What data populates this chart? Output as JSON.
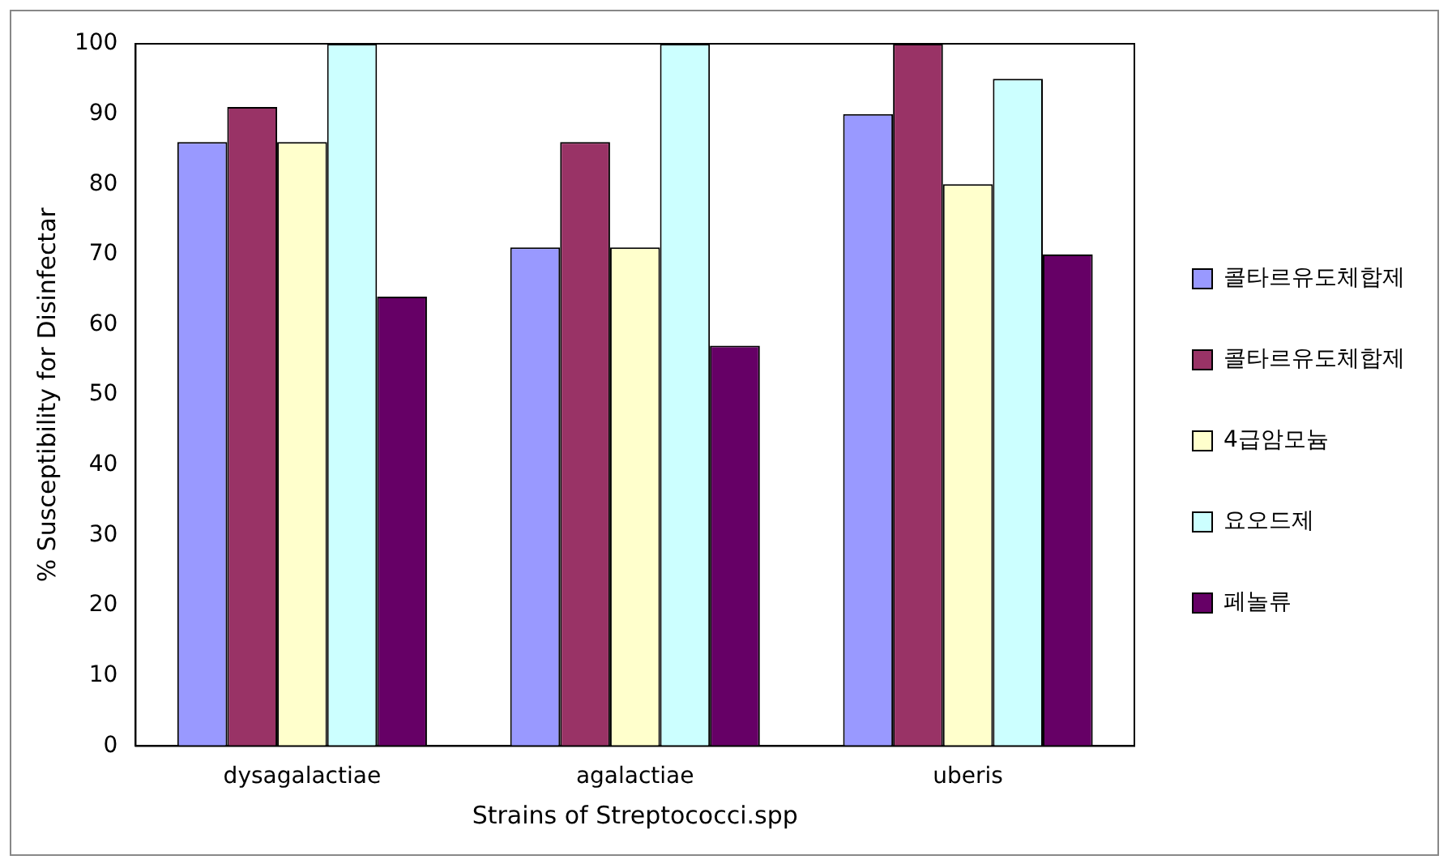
{
  "chart_data": {
    "type": "bar",
    "xlabel": "Strains of Streptococci.spp",
    "ylabel": "% Susceptibility for Disinfectar",
    "categories": [
      "dysagalactiae",
      "agalactiae",
      "uberis"
    ],
    "series": [
      {
        "name": "콜타르유도체합제",
        "color": "#9999ff",
        "values": [
          86,
          71,
          90
        ]
      },
      {
        "name": "콜타르유도체합제",
        "color": "#993366",
        "values": [
          91,
          86,
          100
        ]
      },
      {
        "name": "4급암모늄",
        "color": "#ffffcc",
        "values": [
          86,
          71,
          80
        ]
      },
      {
        "name": "요오드제",
        "color": "#ccffff",
        "values": [
          100,
          100,
          95
        ]
      },
      {
        "name": "페놀류",
        "color": "#660066",
        "values": [
          64,
          57,
          70
        ]
      }
    ],
    "ylim": [
      0,
      100
    ],
    "yticks": [
      0,
      10,
      20,
      30,
      40,
      50,
      60,
      70,
      80,
      90,
      100
    ],
    "grid": false,
    "legend": "right"
  }
}
